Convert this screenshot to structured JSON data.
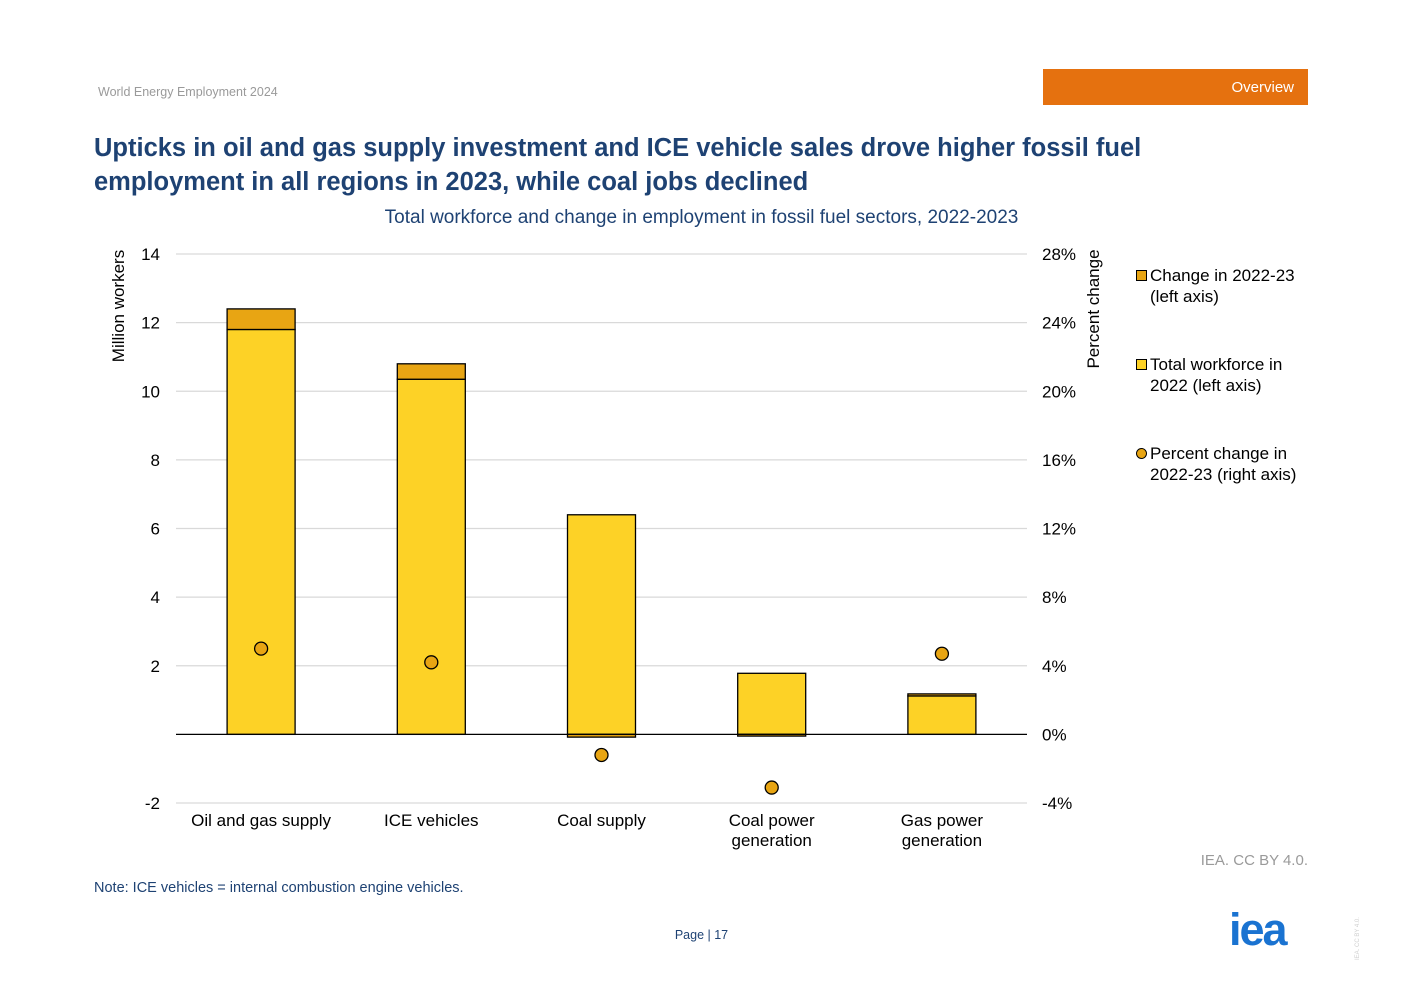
{
  "header": {
    "report_title": "World Energy Employment 2024",
    "section_tab": "Overview"
  },
  "title": "Upticks in oil and gas supply investment and ICE vehicle sales drove higher fossil fuel employment in all regions in 2023, while coal jobs declined",
  "chart_data": {
    "type": "bar",
    "title": "Total workforce and change in employment in fossil fuel sectors, 2022-2023",
    "categories": [
      "Oil and gas supply",
      "ICE vehicles",
      "Coal supply",
      "Coal power generation",
      "Gas power generation"
    ],
    "category_lines": [
      [
        "Oil and gas supply"
      ],
      [
        "ICE vehicles"
      ],
      [
        "Coal supply"
      ],
      [
        "Coal power",
        "generation"
      ],
      [
        "Gas power",
        "generation"
      ]
    ],
    "series": [
      {
        "name": "Change in 2022-23 (left axis)",
        "axis": "left",
        "kind": "stacked-bar",
        "color": "#e8a513",
        "values": [
          0.6,
          0.45,
          -0.08,
          -0.05,
          0.06
        ]
      },
      {
        "name": "Total workforce in 2022 (left axis)",
        "axis": "left",
        "kind": "stacked-bar",
        "color": "#fdd226",
        "values": [
          11.8,
          10.35,
          6.4,
          1.78,
          1.12
        ]
      },
      {
        "name": "Percent change in 2022-23 (right axis)",
        "axis": "right",
        "kind": "scatter",
        "color": "#e8a513",
        "values": [
          0.05,
          0.042,
          -0.012,
          -0.031,
          0.047
        ]
      }
    ],
    "ylabel": "Million workers",
    "ylabel_right": "Percent change",
    "ylim": [
      -2,
      14
    ],
    "yticks": [
      -2,
      2,
      4,
      6,
      8,
      10,
      12,
      14
    ],
    "ylim_right": [
      -0.04,
      0.28
    ],
    "yticks_right": [
      "-4%",
      "0%",
      "4%",
      "8%",
      "12%",
      "16%",
      "20%",
      "24%",
      "28%"
    ],
    "grid": true,
    "legend_position": "right"
  },
  "legend": [
    {
      "label_lines": [
        "Change in 2022-23",
        "(left axis)"
      ],
      "shape": "square",
      "color": "#e8a513"
    },
    {
      "label_lines": [
        "Total workforce in",
        "2022 (left axis)"
      ],
      "shape": "square",
      "color": "#fdd226"
    },
    {
      "label_lines": [
        "Percent change in",
        "2022-23 (right axis)"
      ],
      "shape": "circle",
      "color": "#e8a513"
    }
  ],
  "source": "IEA. CC BY 4.0.",
  "note": "Note: ICE vehicles = internal combustion engine vehicles.",
  "footer": {
    "page": "Page | 17",
    "logo": "iea",
    "side_license": "IEA. CC BY 4.0."
  }
}
